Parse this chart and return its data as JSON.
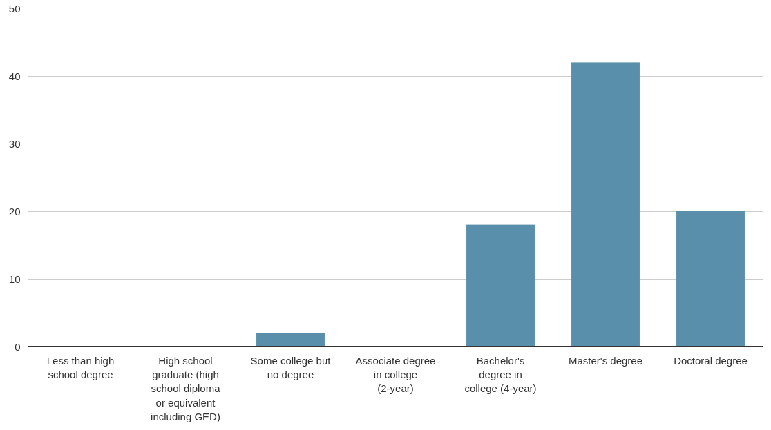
{
  "chart_data": {
    "type": "bar",
    "categories": [
      "Less than high school degree",
      "High school graduate (high school diploma or equivalent including GED)",
      "Some college but no degree",
      "Associate degree in college (2-year)",
      "Bachelor's degree in college (4-year)",
      "Master's degree",
      "Doctoral degree"
    ],
    "values": [
      0,
      0,
      2,
      0,
      18,
      42,
      20
    ],
    "color": "#5a8fab",
    "ylim": [
      0,
      50
    ],
    "yticks": [
      0,
      10,
      20,
      30,
      40,
      50
    ],
    "grid": "y"
  }
}
